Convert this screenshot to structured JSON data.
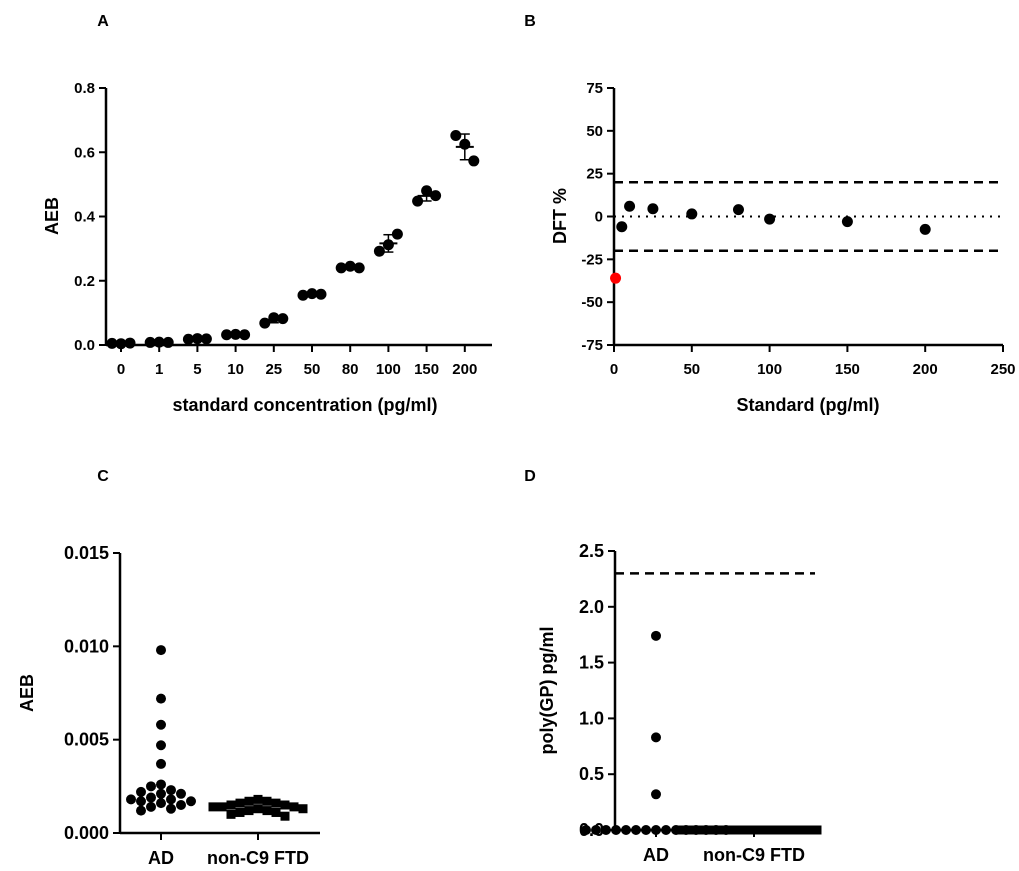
{
  "colors": {
    "ink": "#000000",
    "highlight": "#ff0000",
    "background": "#ffffff"
  },
  "chart_data": [
    {
      "id": "A",
      "panel_label": "A",
      "type": "scatter",
      "xlabel": "standard concentration (pg/ml)",
      "ylabel": "AEB",
      "x_axis": "categorical",
      "categories": [
        "0",
        "1",
        "5",
        "10",
        "25",
        "50",
        "80",
        "100",
        "150",
        "200"
      ],
      "ylim": [
        0,
        0.8
      ],
      "yticks": [
        0.0,
        0.2,
        0.4,
        0.6,
        0.8
      ],
      "ytick_labels": [
        "0.0",
        "0.2",
        "0.4",
        "0.6",
        "0.8"
      ],
      "replicates": [
        [
          0.005,
          0.004,
          0.006
        ],
        [
          0.008,
          0.009,
          0.008
        ],
        [
          0.018,
          0.02,
          0.019
        ],
        [
          0.032,
          0.033,
          0.032
        ],
        [
          0.068,
          0.085,
          0.082
        ],
        [
          0.155,
          0.16,
          0.158
        ],
        [
          0.24,
          0.245,
          0.24
        ],
        [
          0.292,
          0.312,
          0.345
        ],
        [
          0.448,
          0.48,
          0.465
        ],
        [
          0.652,
          0.625,
          0.573
        ]
      ],
      "means": [
        0.005,
        0.0083,
        0.019,
        0.0323,
        0.0783,
        0.1577,
        0.2417,
        0.3163,
        0.4643,
        0.6167
      ],
      "sd": [
        0.001,
        0.0006,
        0.001,
        0.0006,
        0.009,
        0.0025,
        0.0029,
        0.027,
        0.016,
        0.04
      ],
      "grid": false,
      "legend": "none"
    },
    {
      "id": "B",
      "panel_label": "B",
      "type": "scatter",
      "xlabel": "Standard (pg/ml)",
      "ylabel": "DFT %",
      "xlim": [
        0,
        250
      ],
      "xticks": [
        0,
        50,
        100,
        150,
        200,
        250
      ],
      "ylim": [
        -75,
        75
      ],
      "yticks": [
        -75,
        -50,
        -25,
        0,
        25,
        50,
        75
      ],
      "points": [
        {
          "x": 1,
          "y": -36,
          "highlight": true
        },
        {
          "x": 5,
          "y": -6
        },
        {
          "x": 10,
          "y": 6
        },
        {
          "x": 25,
          "y": 4.5
        },
        {
          "x": 50,
          "y": 1.5
        },
        {
          "x": 80,
          "y": 4
        },
        {
          "x": 100,
          "y": -1.5
        },
        {
          "x": 150,
          "y": -3
        },
        {
          "x": 200,
          "y": -7.5
        }
      ],
      "reference_lines": [
        {
          "y": 20,
          "style": "dashed"
        },
        {
          "y": -20,
          "style": "dashed"
        },
        {
          "y": 0,
          "style": "dotted"
        }
      ],
      "grid": false,
      "legend": "none"
    },
    {
      "id": "C",
      "panel_label": "C",
      "type": "scatter",
      "xlabel": "",
      "ylabel": "AEB",
      "categories": [
        "AD",
        "non-C9 FTD"
      ],
      "ylim": [
        0,
        0.015
      ],
      "yticks": [
        0,
        0.005,
        0.01,
        0.015
      ],
      "ytick_labels": [
        "0.000",
        "0.005",
        "0.010",
        "0.015"
      ],
      "series": [
        {
          "category": "AD",
          "marker": "circle",
          "values": [
            0.0098,
            0.0072,
            0.0058,
            0.0047,
            0.0037,
            0.0026,
            0.0025,
            0.0023,
            0.0022,
            0.0021,
            0.0021,
            0.0019,
            0.0018,
            0.0018,
            0.0017,
            0.0017,
            0.0016,
            0.0015,
            0.0014,
            0.0013,
            0.0012
          ]
        },
        {
          "category": "non-C9 FTD",
          "marker": "square",
          "values": [
            0.0018,
            0.0017,
            0.0017,
            0.0016,
            0.0016,
            0.0015,
            0.0015,
            0.0014,
            0.0014,
            0.0014,
            0.0013,
            0.0013,
            0.0012,
            0.0012,
            0.0011,
            0.0011,
            0.001,
            0.0009
          ]
        }
      ],
      "grid": false,
      "legend": "none"
    },
    {
      "id": "D",
      "panel_label": "D",
      "type": "scatter",
      "xlabel": "",
      "ylabel": "poly(GP) pg/ml",
      "categories": [
        "AD",
        "non-C9 FTD"
      ],
      "ylim": [
        0,
        2.5
      ],
      "yticks": [
        0,
        0.5,
        1.0,
        1.5,
        2.0,
        2.5
      ],
      "ytick_labels": [
        "0.0",
        "0.5",
        "1.0",
        "1.5",
        "2.0",
        "2.5"
      ],
      "series": [
        {
          "category": "AD",
          "marker": "circle",
          "values": [
            1.74,
            0.83,
            0.32,
            0,
            0,
            0,
            0,
            0,
            0,
            0,
            0,
            0,
            0,
            0,
            0,
            0,
            0,
            0
          ]
        },
        {
          "category": "non-C9 FTD",
          "marker": "square",
          "values": [
            0,
            0,
            0,
            0,
            0,
            0,
            0,
            0,
            0,
            0,
            0,
            0,
            0,
            0,
            0,
            0
          ]
        }
      ],
      "reference_lines": [
        {
          "y": 2.3,
          "style": "dashed"
        }
      ],
      "grid": false,
      "legend": "none"
    }
  ]
}
